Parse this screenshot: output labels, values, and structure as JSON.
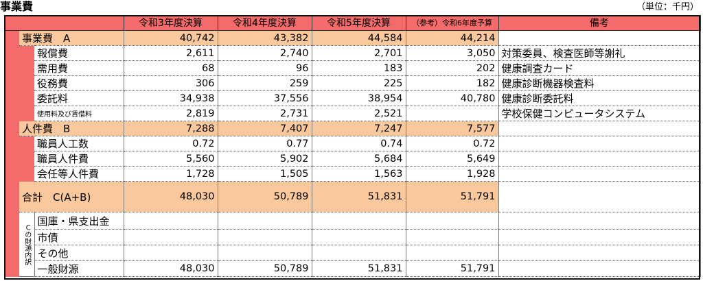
{
  "title": "事業費",
  "unit": "（単位：千円）",
  "headers": {
    "y3": "令和3年度決算",
    "y4": "令和4年度決算",
    "y5": "令和5年度決算",
    "y6": "（参考）令和6年度予算",
    "remarks": "備考"
  },
  "rows": {
    "business": {
      "label": "事業費　A",
      "v": [
        "40,742",
        "43,382",
        "44,584",
        "44,214"
      ],
      "remark": ""
    },
    "reward": {
      "label": "報償費",
      "v": [
        "2,611",
        "2,740",
        "2,701",
        "3,050"
      ],
      "remark": "対策委員、検査医師等謝礼"
    },
    "supplies": {
      "label": "需用費",
      "v": [
        "68",
        "96",
        "183",
        "202"
      ],
      "remark": "健康調査カード"
    },
    "services": {
      "label": "役務費",
      "v": [
        "306",
        "259",
        "225",
        "182"
      ],
      "remark": "健康診断機器検査料"
    },
    "consign": {
      "label": "委託料",
      "v": [
        "34,938",
        "37,556",
        "38,954",
        "40,780"
      ],
      "remark": "健康診断委託料"
    },
    "rental": {
      "label": "使用料及び賃借料",
      "v": [
        "2,819",
        "2,731",
        "2,521",
        ""
      ],
      "remark": "学校保健コンピュータシステム"
    },
    "personnel": {
      "label": "人件費　B",
      "v": [
        "7,288",
        "7,407",
        "7,247",
        "7,577"
      ],
      "remark": ""
    },
    "staff_count": {
      "label": "職員人工数",
      "v": [
        "0.72",
        "0.77",
        "0.74",
        "0.72"
      ],
      "remark": ""
    },
    "staff_cost": {
      "label": "職員人件費",
      "v": [
        "5,560",
        "5,902",
        "5,684",
        "5,649"
      ],
      "remark": ""
    },
    "part_cost": {
      "label": "会任等人件費",
      "v": [
        "1,728",
        "1,505",
        "1,563",
        "1,928"
      ],
      "remark": ""
    },
    "total": {
      "label": "合計　C(A+B)",
      "v": [
        "48,030",
        "50,789",
        "51,831",
        "51,791"
      ],
      "remark": ""
    },
    "treasury": {
      "label": "国庫・県支出金",
      "v": [
        "",
        "",
        "",
        ""
      ],
      "remark": ""
    },
    "bond": {
      "label": "市債",
      "v": [
        "",
        "",
        "",
        ""
      ],
      "remark": ""
    },
    "other": {
      "label": "その他",
      "v": [
        "",
        "",
        "",
        ""
      ],
      "remark": ""
    },
    "general": {
      "label": "一般財源",
      "v": [
        "48,030",
        "50,789",
        "51,831",
        "51,791"
      ],
      "remark": ""
    }
  },
  "funding_label": "Ｃの財源内訳"
}
